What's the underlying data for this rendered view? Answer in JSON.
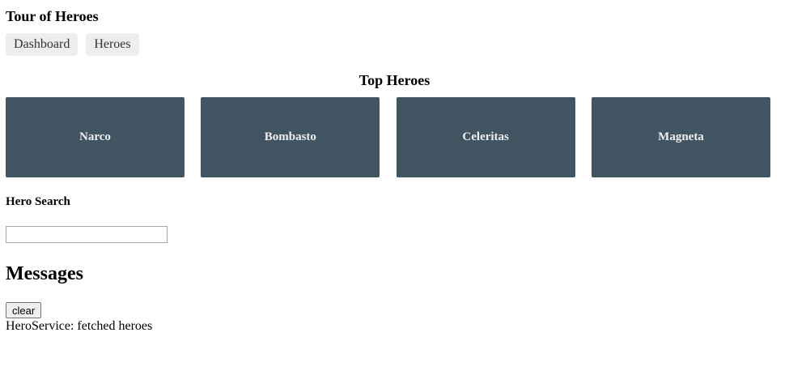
{
  "app": {
    "title": "Tour of Heroes"
  },
  "nav": {
    "items": [
      {
        "label": "Dashboard"
      },
      {
        "label": "Heroes"
      }
    ]
  },
  "dashboard": {
    "title": "Top Heroes",
    "heroes": [
      {
        "name": "Narco"
      },
      {
        "name": "Bombasto"
      },
      {
        "name": "Celeritas"
      },
      {
        "name": "Magneta"
      }
    ]
  },
  "search": {
    "title": "Hero Search",
    "value": "",
    "placeholder": ""
  },
  "messages": {
    "title": "Messages",
    "clear_label": "clear",
    "items": [
      {
        "text": "HeroService: fetched heroes"
      }
    ]
  },
  "colors": {
    "hero_card_bg": "#405561",
    "hero_card_text": "#eeeeee",
    "nav_bg": "#eeeeee"
  }
}
